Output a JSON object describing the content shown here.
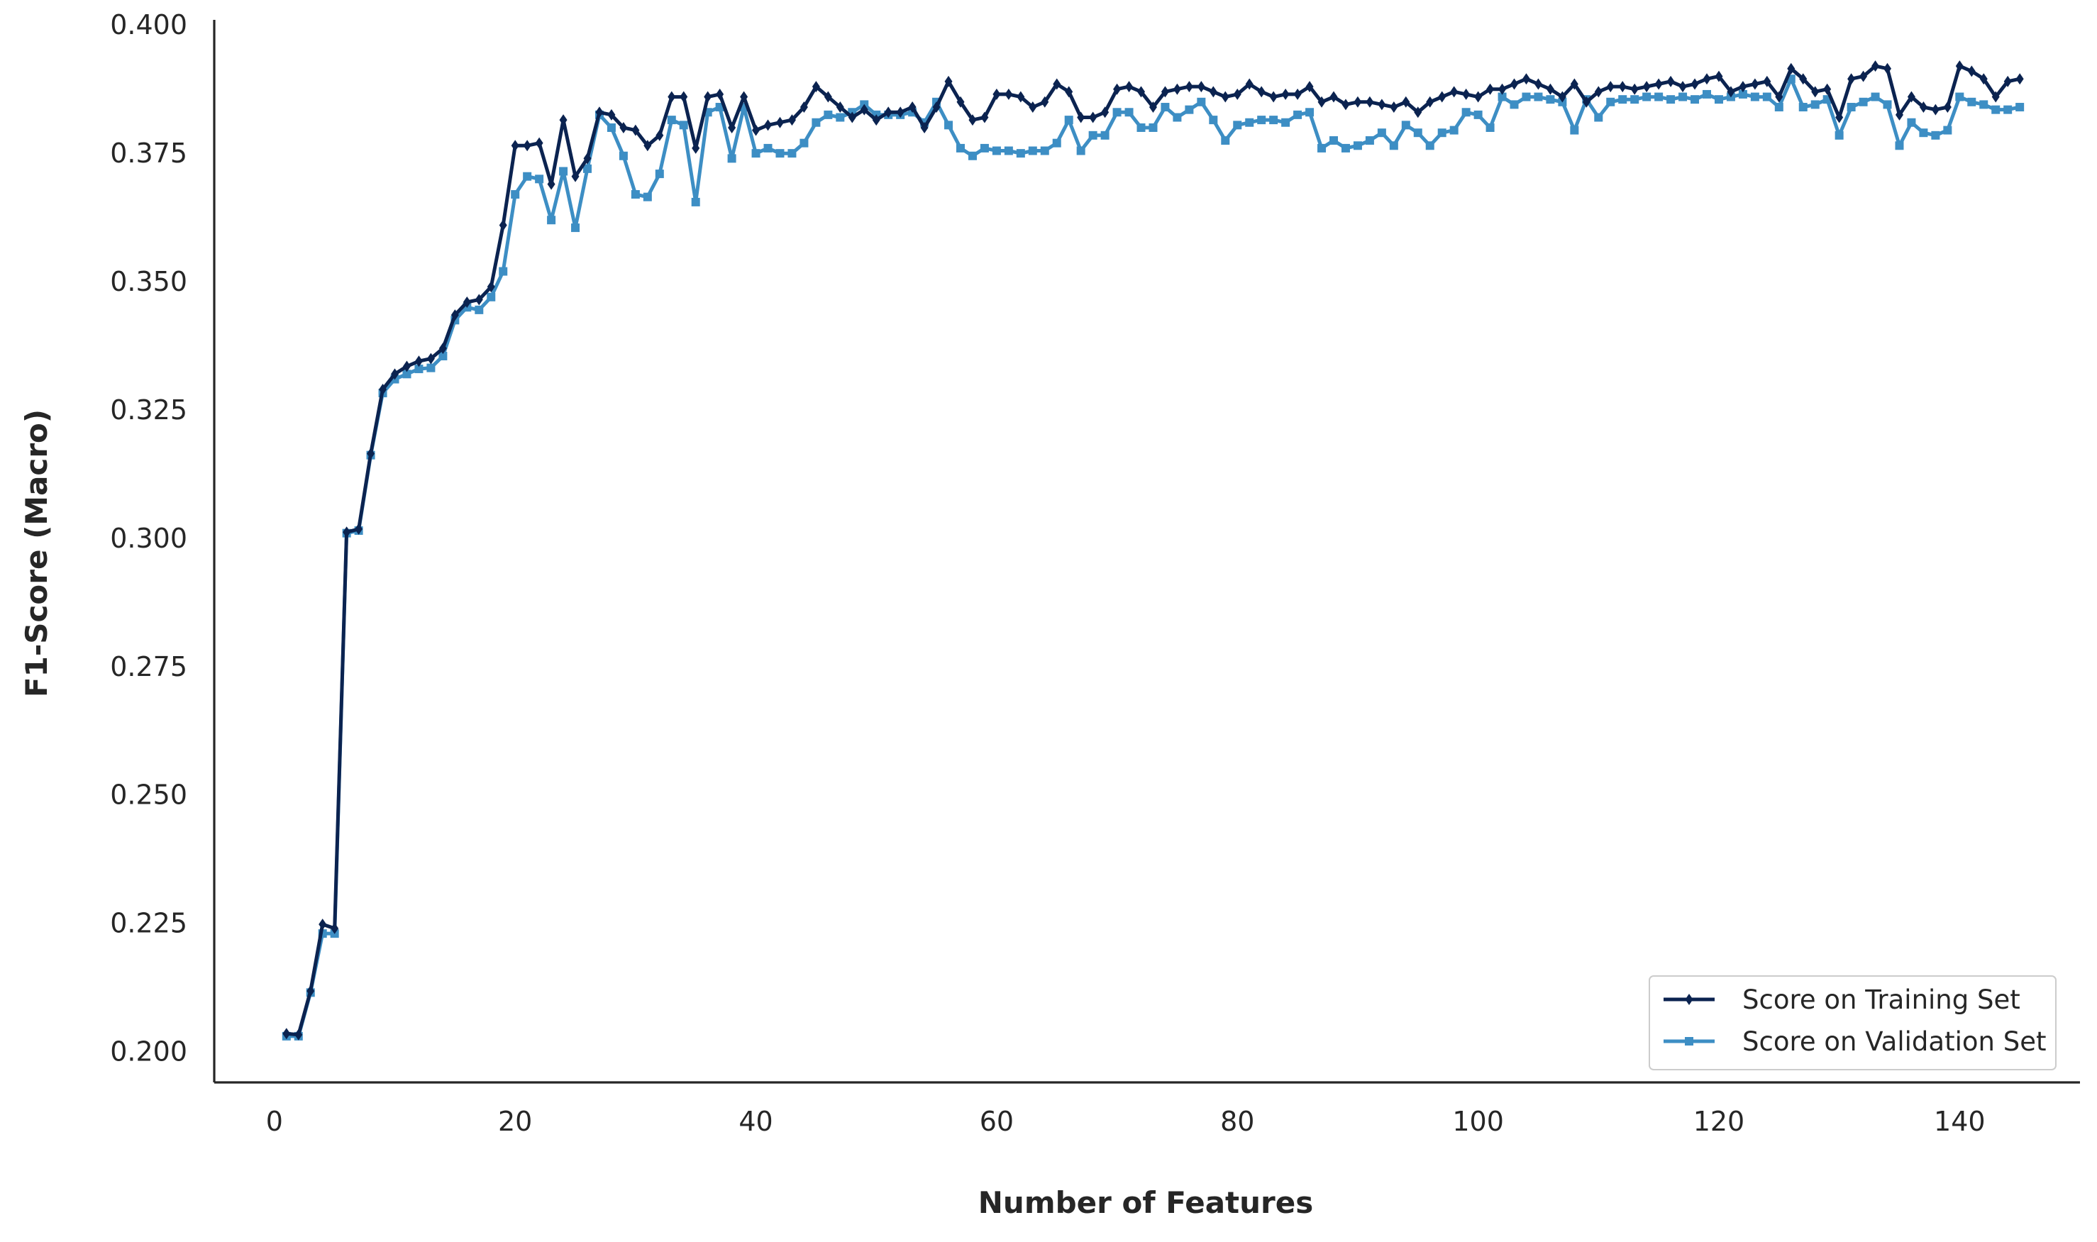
{
  "chart_data": {
    "type": "line",
    "xlabel": "Number of Features",
    "ylabel": "F1-Score (Macro)",
    "xlim": [
      -5,
      150
    ],
    "ylim": [
      0.194,
      0.401
    ],
    "xticks": [
      0,
      20,
      40,
      60,
      80,
      100,
      120,
      140
    ],
    "xtick_labels": [
      "0",
      "20",
      "40",
      "60",
      "80",
      "100",
      "120",
      "140"
    ],
    "yticks": [
      0.2,
      0.225,
      0.25,
      0.275,
      0.3,
      0.325,
      0.35,
      0.375,
      0.4
    ],
    "ytick_labels": [
      "0.200",
      "0.225",
      "0.250",
      "0.275",
      "0.300",
      "0.325",
      "0.350",
      "0.375",
      "0.400"
    ],
    "grid": false,
    "legend_position": "bottom-right",
    "x_start": 1,
    "series": [
      {
        "name": "Score on Training Set",
        "color": "#0b2350",
        "marker": "diamond",
        "values": [
          0.2035,
          0.2033,
          0.2118,
          0.2248,
          0.224,
          0.3012,
          0.3018,
          0.3165,
          0.329,
          0.332,
          0.3335,
          0.3345,
          0.335,
          0.337,
          0.3435,
          0.346,
          0.3465,
          0.349,
          0.361,
          0.3765,
          0.3765,
          0.377,
          0.369,
          0.3815,
          0.3705,
          0.374,
          0.383,
          0.3825,
          0.38,
          0.3795,
          0.3765,
          0.3785,
          0.386,
          0.386,
          0.376,
          0.386,
          0.3865,
          0.38,
          0.386,
          0.3795,
          0.3805,
          0.381,
          0.3815,
          0.384,
          0.388,
          0.386,
          0.384,
          0.382,
          0.3835,
          0.3815,
          0.383,
          0.383,
          0.384,
          0.38,
          0.384,
          0.389,
          0.385,
          0.3815,
          0.382,
          0.3865,
          0.3865,
          0.386,
          0.384,
          0.385,
          0.3885,
          0.387,
          0.382,
          0.382,
          0.383,
          0.3875,
          0.388,
          0.387,
          0.384,
          0.387,
          0.3875,
          0.388,
          0.388,
          0.387,
          0.386,
          0.3865,
          0.3885,
          0.387,
          0.386,
          0.3865,
          0.3865,
          0.388,
          0.385,
          0.386,
          0.3845,
          0.385,
          0.385,
          0.3845,
          0.384,
          0.385,
          0.383,
          0.385,
          0.386,
          0.387,
          0.3865,
          0.386,
          0.3875,
          0.3875,
          0.3885,
          0.3895,
          0.3885,
          0.3875,
          0.386,
          0.3885,
          0.385,
          0.387,
          0.388,
          0.388,
          0.3875,
          0.388,
          0.3885,
          0.389,
          0.388,
          0.3885,
          0.3895,
          0.39,
          0.387,
          0.388,
          0.3885,
          0.389,
          0.386,
          0.3915,
          0.3895,
          0.387,
          0.3875,
          0.382,
          0.3895,
          0.39,
          0.392,
          0.3915,
          0.3825,
          0.386,
          0.384,
          0.3835,
          0.384,
          0.392,
          0.391,
          0.3895,
          0.386,
          0.389,
          0.3895
        ]
      },
      {
        "name": "Score on Validation Set",
        "color": "#3d8ec4",
        "marker": "square",
        "values": [
          0.203,
          0.203,
          0.2115,
          0.223,
          0.223,
          0.301,
          0.3015,
          0.3162,
          0.3283,
          0.331,
          0.332,
          0.333,
          0.3332,
          0.3355,
          0.3425,
          0.345,
          0.3445,
          0.347,
          0.352,
          0.367,
          0.3705,
          0.37,
          0.362,
          0.3715,
          0.3605,
          0.372,
          0.3825,
          0.38,
          0.3745,
          0.367,
          0.3665,
          0.371,
          0.3815,
          0.3805,
          0.3655,
          0.383,
          0.384,
          0.374,
          0.384,
          0.375,
          0.376,
          0.375,
          0.375,
          0.377,
          0.381,
          0.3825,
          0.382,
          0.383,
          0.3845,
          0.3825,
          0.3825,
          0.3825,
          0.383,
          0.381,
          0.385,
          0.3805,
          0.376,
          0.3745,
          0.376,
          0.3755,
          0.3755,
          0.375,
          0.3755,
          0.3755,
          0.377,
          0.3815,
          0.3755,
          0.3785,
          0.3785,
          0.383,
          0.383,
          0.38,
          0.38,
          0.384,
          0.382,
          0.3835,
          0.385,
          0.3815,
          0.3775,
          0.3805,
          0.381,
          0.3815,
          0.3815,
          0.381,
          0.3825,
          0.383,
          0.376,
          0.3775,
          0.376,
          0.3765,
          0.3775,
          0.379,
          0.3765,
          0.3805,
          0.379,
          0.3765,
          0.379,
          0.3795,
          0.383,
          0.3825,
          0.38,
          0.386,
          0.3845,
          0.386,
          0.386,
          0.3855,
          0.385,
          0.3795,
          0.3855,
          0.382,
          0.385,
          0.3855,
          0.3855,
          0.386,
          0.386,
          0.3855,
          0.386,
          0.3855,
          0.3865,
          0.3855,
          0.386,
          0.3865,
          0.386,
          0.386,
          0.384,
          0.3895,
          0.384,
          0.3845,
          0.3855,
          0.3785,
          0.384,
          0.385,
          0.386,
          0.3845,
          0.3765,
          0.381,
          0.379,
          0.3785,
          0.3795,
          0.386,
          0.385,
          0.3845,
          0.3835,
          0.3835,
          0.384
        ]
      }
    ]
  }
}
